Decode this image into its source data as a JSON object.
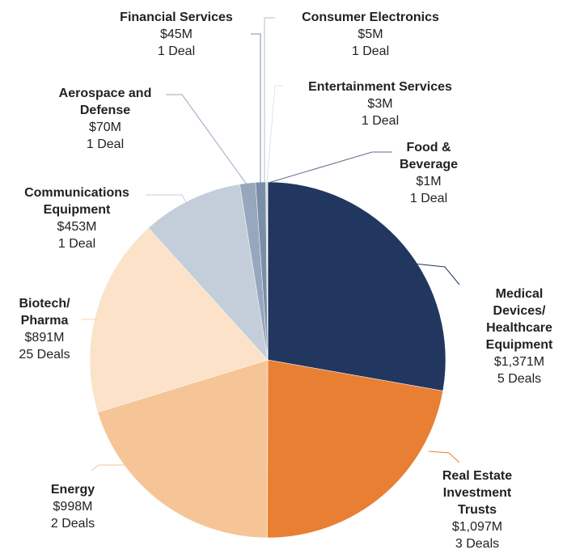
{
  "chart_data": {
    "type": "pie",
    "categories": [
      "Medical\nDevices/\nHealthcare\nEquipment",
      "Real Estate\nInvestment\nTrusts",
      "Energy",
      "Biotech/\nPharma",
      "Communications\nEquipment",
      "Aerospace and\nDefense",
      "Financial Services",
      "Consumer Electronics",
      "Entertainment Services",
      "Food &\nBeverage"
    ],
    "values": [
      1371,
      1097,
      998,
      891,
      453,
      70,
      45,
      5,
      3,
      1
    ],
    "value_labels": [
      "$1,371M",
      "$1,097M",
      "$998M",
      "$891M",
      "$453M",
      "$70M",
      "$45M",
      "$5M",
      "$3M",
      "$1M"
    ],
    "deals_labels": [
      "5 Deals",
      "3 Deals",
      "2 Deals",
      "25 Deals",
      "1 Deal",
      "1 Deal",
      "1 Deal",
      "1 Deal",
      "1 Deal",
      "1 Deal"
    ],
    "colors": [
      "#22375f",
      "#e97f33",
      "#f6c597",
      "#fbe2c8",
      "#c4ceda",
      "#97a7bd",
      "#7b8ea8",
      "#b0bccb",
      "#dde3ea",
      "#5d6e8a"
    ]
  }
}
